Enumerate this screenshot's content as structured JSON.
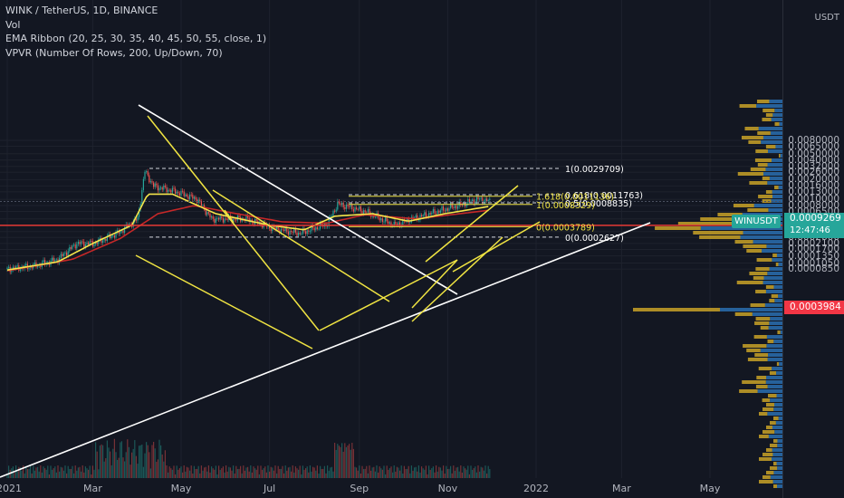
{
  "legend": {
    "symbol": "WINK / TetherUS, 1D, BINANCE",
    "vol": "Vol",
    "ema": "EMA Ribbon (20, 25, 30, 35, 40, 45, 50, 55, close, 1)",
    "vpvr": "VPVR (Number Of Rows, 200, Up/Down, 70)"
  },
  "price_scale": {
    "currency": "USDT",
    "ticks": [
      "0.0080000",
      "0.0065000",
      "0.0050000",
      "0.0040000",
      "0.0032000",
      "0.0026000",
      "0.0020000",
      "0.0016000",
      "0.0013000",
      "0.0010000",
      "0.0008000",
      "0.0006500",
      "0.0005000",
      "0.0004000",
      "0.0003200",
      "0.0002600",
      "0.0002100",
      "0.0001700",
      "0.0001350",
      "0.0001050",
      "0.0000850"
    ],
    "symbol_badge": "WINUSDT",
    "last_price": "0.0009269",
    "countdown": "12:47:46",
    "red_line_price": "0.0003984"
  },
  "time_axis": [
    "2021",
    "Mar",
    "May",
    "Jul",
    "Sep",
    "Nov",
    "2022",
    "Mar",
    "May"
  ],
  "fib_labels": {
    "top": "1(0.0029709)",
    "f618": "0.618(0.0011763)",
    "f1618": "1.618(0.0011136)",
    "f05": "0.5(0.0008835)",
    "f1": "1(0.0008329)",
    "f0": "0(0.0003789)",
    "bottom": "0(0.0002627)"
  },
  "colors": {
    "background": "#131722",
    "up": "#26a69a",
    "down": "#ef5350",
    "ema_yellow": "#f5e64b",
    "ema_red": "#c62828",
    "trend": "#ffffff",
    "pattern": "#f0e442",
    "vp_up": "#2a6fb0",
    "vp_down": "#c9a227",
    "red_level": "#e53935",
    "badge_teal": "#26a69a",
    "badge_red": "#f23645"
  },
  "chart_data": {
    "type": "candlestick",
    "x_range": [
      "2021-01-01",
      "2022-05-31"
    ],
    "y_scale": "log",
    "y_range": [
      8e-05,
      0.008
    ],
    "price_path": [
      {
        "date": "2021-01-01",
        "price": 8.5e-05
      },
      {
        "date": "2021-01-20",
        "price": 9.5e-05
      },
      {
        "date": "2021-02-05",
        "price": 0.00012
      },
      {
        "date": "2021-02-18",
        "price": 0.00021
      },
      {
        "date": "2021-03-02",
        "price": 0.00021
      },
      {
        "date": "2021-03-18",
        "price": 0.0003
      },
      {
        "date": "2021-04-01",
        "price": 0.0005
      },
      {
        "date": "2021-04-06",
        "price": 0.0027
      },
      {
        "date": "2021-04-12",
        "price": 0.0016
      },
      {
        "date": "2021-04-28",
        "price": 0.0013
      },
      {
        "date": "2021-05-12",
        "price": 0.001
      },
      {
        "date": "2021-05-22",
        "price": 0.0005
      },
      {
        "date": "2021-06-15",
        "price": 0.0005
      },
      {
        "date": "2021-07-05",
        "price": 0.00035
      },
      {
        "date": "2021-07-22",
        "price": 0.0003
      },
      {
        "date": "2021-08-10",
        "price": 0.00042
      },
      {
        "date": "2021-08-17",
        "price": 0.00085
      },
      {
        "date": "2021-09-05",
        "price": 0.00065
      },
      {
        "date": "2021-09-25",
        "price": 0.0004
      },
      {
        "date": "2021-10-05",
        "price": 0.00048
      },
      {
        "date": "2021-10-25",
        "price": 0.00065
      },
      {
        "date": "2021-11-08",
        "price": 0.0008
      },
      {
        "date": "2021-11-22",
        "price": 0.001
      },
      {
        "date": "2021-11-30",
        "price": 0.000927
      }
    ],
    "ema_fast_path": [
      {
        "date": "2021-01-01",
        "price": 8.2e-05
      },
      {
        "date": "2021-02-05",
        "price": 0.00011
      },
      {
        "date": "2021-03-01",
        "price": 0.00021
      },
      {
        "date": "2021-03-28",
        "price": 0.0004
      },
      {
        "date": "2021-04-08",
        "price": 0.0012
      },
      {
        "date": "2021-04-25",
        "price": 0.0012
      },
      {
        "date": "2021-05-25",
        "price": 0.0006
      },
      {
        "date": "2021-07-01",
        "price": 0.0004
      },
      {
        "date": "2021-07-25",
        "price": 0.00034
      },
      {
        "date": "2021-08-15",
        "price": 0.00055
      },
      {
        "date": "2021-09-10",
        "price": 0.0006
      },
      {
        "date": "2021-10-05",
        "price": 0.00046
      },
      {
        "date": "2021-10-30",
        "price": 0.0006
      },
      {
        "date": "2021-11-30",
        "price": 0.00078
      }
    ],
    "ema_slow_path": [
      {
        "date": "2021-01-01",
        "price": 8e-05
      },
      {
        "date": "2021-02-15",
        "price": 0.00012
      },
      {
        "date": "2021-03-20",
        "price": 0.00025
      },
      {
        "date": "2021-04-15",
        "price": 0.0006
      },
      {
        "date": "2021-05-10",
        "price": 0.0008
      },
      {
        "date": "2021-06-05",
        "price": 0.00062
      },
      {
        "date": "2021-07-10",
        "price": 0.00045
      },
      {
        "date": "2021-08-10",
        "price": 0.00043
      },
      {
        "date": "2021-09-05",
        "price": 0.00058
      },
      {
        "date": "2021-10-10",
        "price": 0.0005
      },
      {
        "date": "2021-11-30",
        "price": 0.00068
      }
    ],
    "fib_levels": [
      0.0029709,
      0.0011763,
      0.0011136,
      0.0008835,
      0.0008329,
      0.0003789,
      0.0002627
    ],
    "horizontal_level": 0.0003984,
    "last_price": 0.0009269
  }
}
